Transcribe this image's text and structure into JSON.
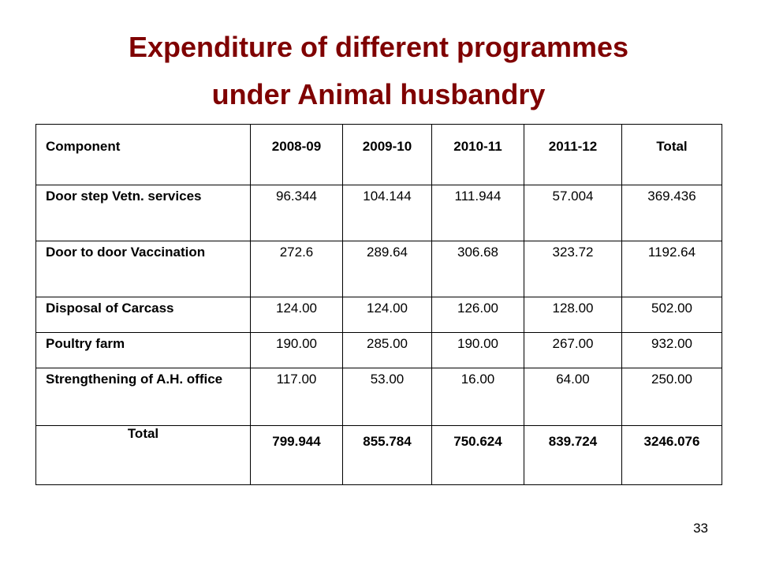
{
  "title": {
    "line1": "Expenditure of different programmes",
    "line2": "under Animal husbandry"
  },
  "table": {
    "headers": [
      "Component",
      "2008-09",
      "2009-10",
      "2010-11",
      "2011-12",
      "Total"
    ],
    "rows": [
      [
        "Door step Vetn. services",
        "96.344",
        "104.144",
        "111.944",
        "57.004",
        "369.436"
      ],
      [
        "Door to door Vaccination",
        "272.6",
        "289.64",
        "306.68",
        "323.72",
        "1192.64"
      ],
      [
        "Disposal of Carcass",
        "124.00",
        "124.00",
        "126.00",
        "128.00",
        "502.00"
      ],
      [
        "Poultry farm",
        "190.00",
        "285.00",
        "190.00",
        "267.00",
        "932.00"
      ],
      [
        "Strengthening of A.H. office",
        "117.00",
        "53.00",
        "16.00",
        "64.00",
        "250.00"
      ]
    ],
    "total_row": [
      "Total",
      "799.944",
      "855.784",
      "750.624",
      "839.724",
      "3246.076"
    ]
  },
  "page_number": "33",
  "colors": {
    "title": "#7f0000",
    "border": "#000000"
  }
}
